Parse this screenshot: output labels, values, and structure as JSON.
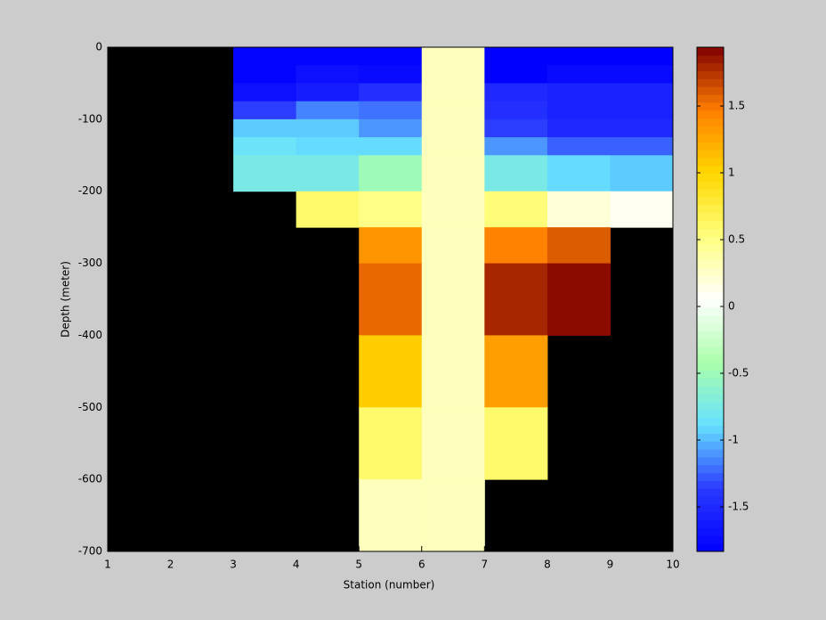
{
  "chart_data": {
    "type": "heatmap",
    "xlabel": "Station (number)",
    "ylabel": "Depth (meter)",
    "x_edges": [
      1,
      2,
      3,
      4,
      5,
      6,
      7,
      8,
      9,
      10
    ],
    "y_edges": [
      0,
      -25,
      -50,
      -75,
      -100,
      -125,
      -150,
      -200,
      -250,
      -300,
      -400,
      -500,
      -600,
      -700
    ],
    "z": [
      [
        null,
        null,
        -1.8,
        -1.8,
        -1.8,
        0.3,
        -1.83,
        -1.83,
        -1.83
      ],
      [
        null,
        null,
        -1.8,
        -1.7,
        -1.75,
        0.3,
        -1.83,
        -1.75,
        -1.75
      ],
      [
        null,
        null,
        -1.7,
        -1.6,
        -1.45,
        0.3,
        -1.5,
        -1.55,
        -1.55
      ],
      [
        null,
        null,
        -1.35,
        -1.15,
        -1.2,
        0.3,
        -1.45,
        -1.55,
        -1.55
      ],
      [
        null,
        null,
        -0.95,
        -0.95,
        -1.1,
        0.3,
        -1.35,
        -1.5,
        -1.5
      ],
      [
        null,
        null,
        -0.85,
        -0.9,
        -0.9,
        0.3,
        -1.1,
        -1.25,
        -1.25
      ],
      [
        null,
        null,
        -0.75,
        -0.75,
        -0.5,
        0.3,
        -0.75,
        -0.9,
        -0.95
      ],
      [
        null,
        null,
        null,
        0.6,
        0.5,
        0.3,
        0.55,
        0.2,
        0.1
      ],
      [
        null,
        null,
        null,
        null,
        1.35,
        0.3,
        1.45,
        1.6,
        null
      ],
      [
        null,
        null,
        null,
        null,
        1.55,
        0.3,
        1.8,
        1.9,
        null
      ],
      [
        null,
        null,
        null,
        null,
        1.05,
        0.3,
        1.3,
        null,
        null
      ],
      [
        null,
        null,
        null,
        null,
        0.6,
        0.3,
        0.6,
        null,
        null
      ],
      [
        null,
        null,
        null,
        null,
        0.3,
        0.3,
        null,
        null,
        null
      ]
    ],
    "xlim": [
      1,
      10
    ],
    "xticks": [
      1,
      2,
      3,
      4,
      5,
      6,
      7,
      8,
      9,
      10
    ],
    "ylim": [
      -700,
      0
    ],
    "yticks": [
      0,
      -100,
      -200,
      -300,
      -400,
      -500,
      -600,
      -700
    ],
    "clim": [
      -1.833,
      1.94
    ],
    "cticks": [
      -1.5,
      -1,
      -0.5,
      0,
      0.5,
      1,
      1.5
    ],
    "colormap": [
      "#0000ff",
      "#2a3aff",
      "#66e0ff",
      "#aaffaa",
      "#ffffff",
      "#ffff80",
      "#ffd700",
      "#ff7f00",
      "#800000"
    ],
    "background": "#000000"
  }
}
